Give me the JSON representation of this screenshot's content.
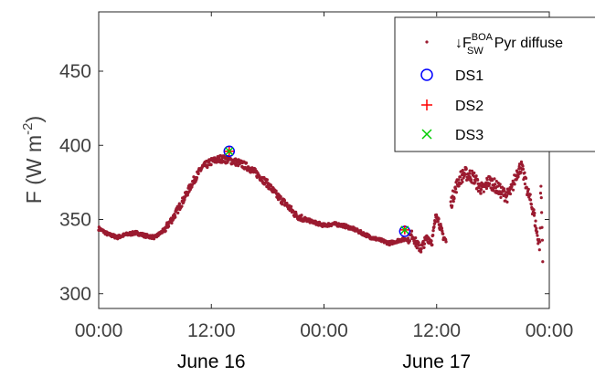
{
  "chart_data": {
    "type": "scatter",
    "ylabel": "F (W m",
    "ylabel_exp": "-2",
    "ylabel_close": ")",
    "ylim": [
      290,
      490
    ],
    "y_ticks": [
      300,
      350,
      400,
      450
    ],
    "x_range_hours": [
      0,
      48
    ],
    "x_ticks": [
      {
        "hour": 0,
        "label": "00:00"
      },
      {
        "hour": 12,
        "label": "12:00"
      },
      {
        "hour": 24,
        "label": "00:00"
      },
      {
        "hour": 36,
        "label": "12:00"
      },
      {
        "hour": 48,
        "label": "00:00"
      }
    ],
    "date_labels": [
      {
        "hour": 12,
        "label": "June 16"
      },
      {
        "hour": 36,
        "label": "June 17"
      }
    ],
    "color_series": "#9b1b30",
    "color_ds1": "#0000ff",
    "color_ds2": "#ff0000",
    "color_ds3": "#00cc00",
    "legend": {
      "position": "top-right",
      "series_arrow": "↓F",
      "series_sup": "BOA",
      "series_sub": "SW",
      "series_suffix": "Pyr diffuse",
      "ds1": "DS1",
      "ds2": "DS2",
      "ds3": "DS3"
    },
    "series_profile": [
      [
        0,
        344
      ],
      [
        1,
        340
      ],
      [
        2,
        338
      ],
      [
        3,
        340
      ],
      [
        4,
        341
      ],
      [
        5,
        339
      ],
      [
        6,
        338
      ],
      [
        7,
        343
      ],
      [
        8,
        352
      ],
      [
        9,
        363
      ],
      [
        10,
        375
      ],
      [
        11,
        385
      ],
      [
        12,
        389
      ],
      [
        13,
        391
      ],
      [
        14,
        390
      ],
      [
        15,
        388
      ],
      [
        16,
        385
      ],
      [
        17,
        380
      ],
      [
        18,
        374
      ],
      [
        19,
        366
      ],
      [
        20,
        360
      ],
      [
        21,
        353
      ],
      [
        22,
        350
      ],
      [
        23,
        348
      ],
      [
        24,
        346
      ],
      [
        25,
        347
      ],
      [
        26,
        346
      ],
      [
        27,
        344
      ],
      [
        28,
        341
      ],
      [
        29,
        338
      ],
      [
        30,
        336
      ],
      [
        31,
        334
      ],
      [
        32,
        336
      ],
      [
        33,
        337
      ],
      [
        33.4,
        340
      ],
      [
        33.8,
        334
      ],
      [
        34.3,
        330
      ],
      [
        35,
        338
      ],
      [
        35.5,
        335
      ],
      [
        36,
        355
      ],
      [
        36.5,
        342
      ],
      [
        37,
        335
      ]
    ],
    "scatter_upper": [
      [
        37.5,
        360
      ],
      [
        38,
        371
      ],
      [
        38.5,
        378
      ],
      [
        39,
        381
      ],
      [
        39.5,
        380
      ],
      [
        40,
        378
      ],
      [
        40.5,
        372
      ],
      [
        41,
        370
      ],
      [
        41.5,
        376
      ],
      [
        42,
        374
      ],
      [
        42.5,
        371
      ],
      [
        43,
        368
      ],
      [
        43.5,
        366
      ],
      [
        44,
        370
      ],
      [
        44.5,
        381
      ],
      [
        45,
        386
      ],
      [
        45.5,
        374
      ],
      [
        46,
        362
      ],
      [
        46.3,
        356
      ],
      [
        46.7,
        340
      ],
      [
        47,
        332
      ],
      [
        47.1,
        376
      ],
      [
        47.3,
        326
      ]
    ],
    "ds1": {
      "x": 13.9,
      "y": 396
    },
    "ds2": {
      "x": 13.9,
      "y": 396
    },
    "ds3": {
      "x": 13.9,
      "y": 396
    },
    "ds1b": {
      "x": 32.6,
      "y": 342
    },
    "ds2b": {
      "x": 32.6,
      "y": 343
    },
    "ds3b": {
      "x": 32.6,
      "y": 343
    }
  }
}
